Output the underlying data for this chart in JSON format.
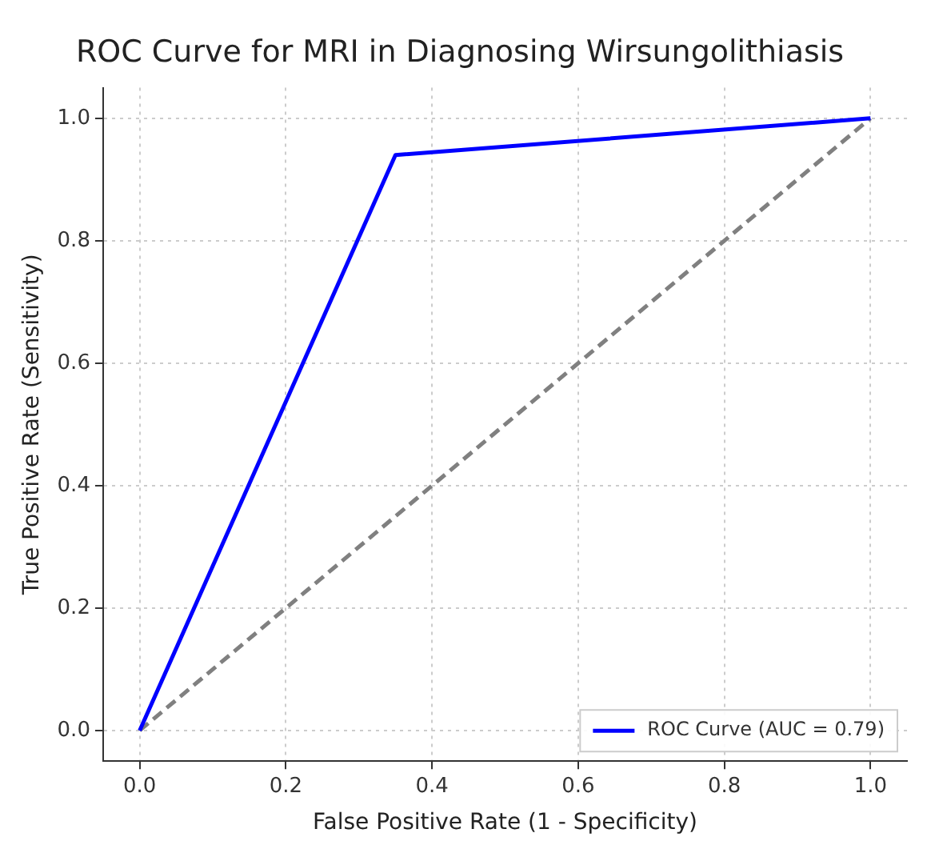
{
  "chart_data": {
    "type": "line",
    "title": "ROC Curve for MRI in Diagnosing Wirsungolithiasis",
    "xlabel": "False Positive Rate (1 - Specificity)",
    "ylabel": "True Positive Rate (Sensitivity)",
    "series": [
      {
        "name": "ROC Curve (AUC = 0.79)",
        "color": "#0000ff",
        "x": [
          0,
          0.35,
          1
        ],
        "values": [
          0,
          0.94,
          1
        ],
        "line_style": "solid"
      },
      {
        "color": "#808080",
        "x": [
          0,
          1
        ],
        "values": [
          0,
          1
        ],
        "line_style": "dashed"
      }
    ],
    "xlim": [
      -0.05,
      1.05
    ],
    "ylim": [
      -0.05,
      1.05
    ],
    "xticks": [
      {
        "value": 0,
        "label": "0.0"
      },
      {
        "value": 0.2,
        "label": "0.2"
      },
      {
        "value": 0.4,
        "label": "0.4"
      },
      {
        "value": 0.6,
        "label": "0.6"
      },
      {
        "value": 0.8,
        "label": "0.8"
      },
      {
        "value": 1,
        "label": "1.0"
      }
    ],
    "yticks": [
      {
        "value": 0,
        "label": "0.0"
      },
      {
        "value": 0.2,
        "label": "0.2"
      },
      {
        "value": 0.4,
        "label": "0.4"
      },
      {
        "value": 0.6,
        "label": "0.6"
      },
      {
        "value": 0.8,
        "label": "0.8"
      },
      {
        "value": 1,
        "label": "1.0"
      }
    ],
    "grid": true,
    "legend": "bottom right",
    "marker": "none"
  }
}
